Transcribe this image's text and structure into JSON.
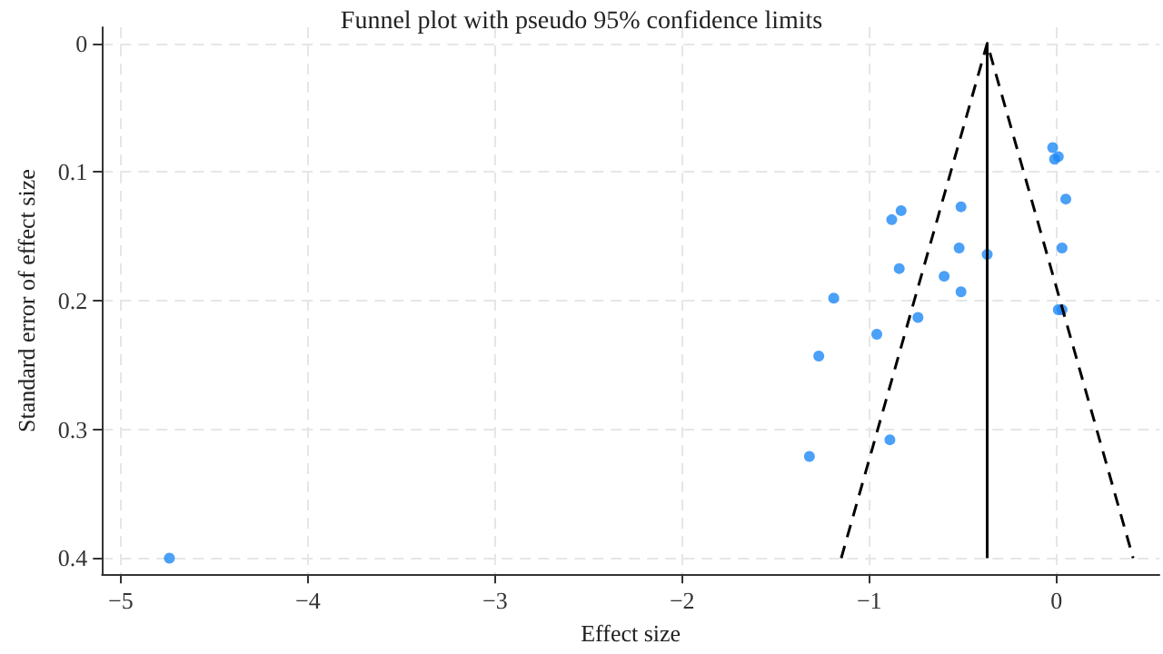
{
  "chart_data": {
    "type": "scatter",
    "title": "Funnel plot with pseudo 95% confidence limits",
    "xlabel": "Effect size",
    "ylabel": "Standard error of effect size",
    "xlim": [
      -5.1,
      0.55
    ],
    "xticks": [
      -5,
      -4,
      -3,
      -2,
      -1,
      0
    ],
    "ylim": [
      0.4125,
      -0.0125
    ],
    "yticks": [
      0,
      0.1,
      0.2,
      0.3,
      0.4
    ],
    "grid": true,
    "series": [
      {
        "color": "#1e88f5",
        "marker": "circle",
        "x": [
          -0.02,
          0.01,
          -0.01,
          0.05,
          -0.83,
          -0.88,
          -0.51,
          -0.52,
          -0.37,
          0.03,
          -0.84,
          -0.6,
          -0.51,
          -1.19,
          0.01,
          0.03,
          -0.74,
          -0.96,
          -1.27,
          -0.89,
          -1.32,
          -4.74
        ],
        "values": [
          0.081,
          0.088,
          0.09,
          0.121,
          0.13,
          0.137,
          0.127,
          0.159,
          0.164,
          0.159,
          0.175,
          0.181,
          0.193,
          0.198,
          0.207,
          0.207,
          0.213,
          0.226,
          0.243,
          0.308,
          0.321,
          0.4
        ]
      },
      {
        "type": "line",
        "color": "#000000",
        "marker": "none",
        "line_style": "dashed",
        "x": [
          -1.15,
          -0.37,
          0.41
        ],
        "values": [
          0.4,
          0,
          0.4
        ]
      },
      {
        "type": "line",
        "color": "#000000",
        "marker": "none",
        "line_style": "solid",
        "x": [
          -0.37,
          -0.37
        ],
        "values": [
          0,
          0.4
        ]
      }
    ]
  }
}
